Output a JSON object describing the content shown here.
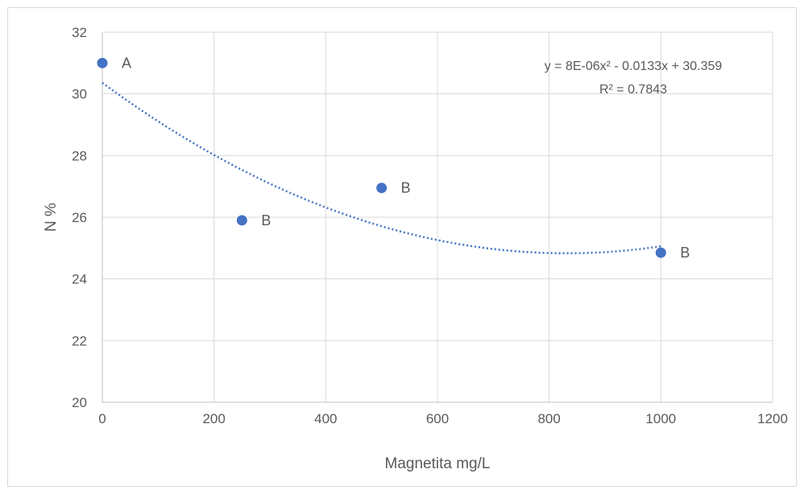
{
  "chart_data": {
    "type": "scatter",
    "title": "",
    "xlabel": "Magnetita mg/L",
    "ylabel": "N %",
    "xlim": [
      0,
      1200
    ],
    "ylim": [
      20,
      32
    ],
    "x_ticks": [
      0,
      200,
      400,
      600,
      800,
      1000,
      1200
    ],
    "y_ticks": [
      20,
      22,
      24,
      26,
      28,
      30,
      32
    ],
    "grid": true,
    "points": [
      {
        "x": 0,
        "y": 31.0,
        "label": "A"
      },
      {
        "x": 250,
        "y": 25.9,
        "label": "B"
      },
      {
        "x": 500,
        "y": 26.95,
        "label": "B"
      },
      {
        "x": 1000,
        "y": 24.85,
        "label": "B"
      }
    ],
    "trendline": {
      "type": "polynomial",
      "order": 2,
      "equation": "y = 8E-06x² - 0.0133x + 30.359",
      "r_squared": "R² = 0.7843",
      "coefficients": {
        "a": 8e-06,
        "b": -0.0133,
        "c": 30.359
      },
      "x_range": [
        0,
        1000
      ]
    },
    "colors": {
      "marker": "#4472C4",
      "trendline": "#4472C4",
      "grid": "#d9d9d9",
      "axis": "#bfbfbf",
      "text": "#595959"
    }
  }
}
